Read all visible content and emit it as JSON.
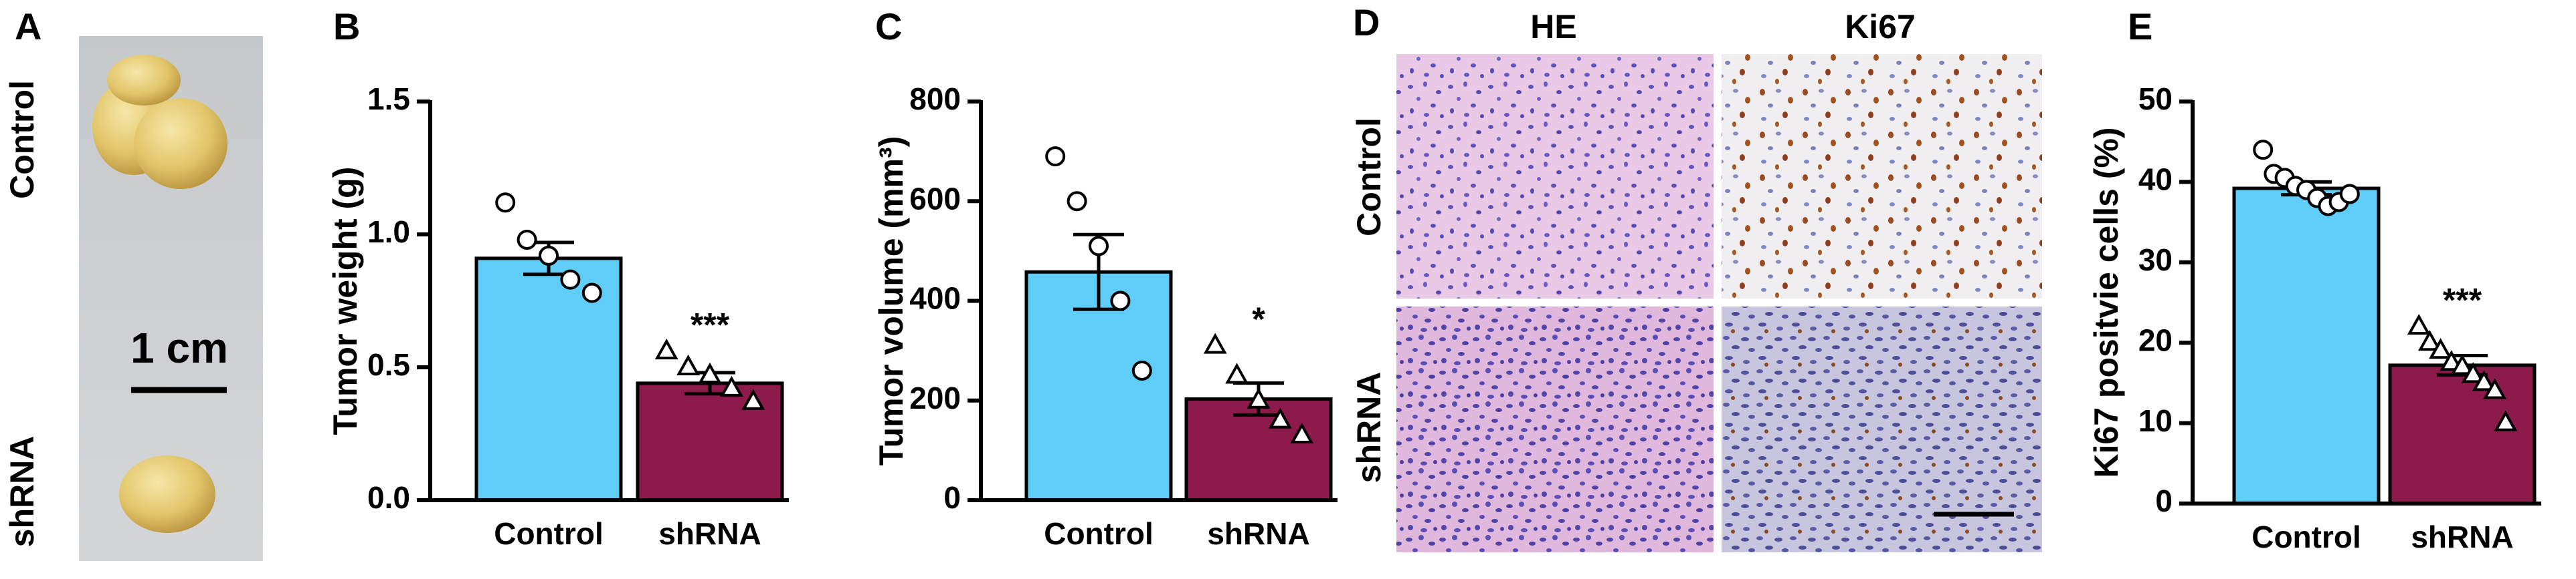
{
  "panels": {
    "a": {
      "letter": "A",
      "rows": [
        "Control",
        "shRNA"
      ],
      "scale": "1 cm"
    },
    "b": {
      "letter": "B"
    },
    "c": {
      "letter": "C"
    },
    "d": {
      "letter": "D",
      "columns": [
        "HE",
        "Ki67"
      ],
      "rows": [
        "Control",
        "shRNA"
      ]
    },
    "e": {
      "letter": "E"
    }
  },
  "chart_data": [
    {
      "type": "bar",
      "ylabel": "Tumor  weight (g)",
      "categories": [
        "Control",
        "shRNA"
      ],
      "values": [
        0.91,
        0.44
      ],
      "errors": [
        0.06,
        0.04
      ],
      "colors": [
        "#5fcdf7",
        "#8c1a4b"
      ],
      "points": [
        [
          1.12,
          0.98,
          0.92,
          0.83,
          0.78
        ],
        [
          0.56,
          0.5,
          0.47,
          0.42,
          0.37
        ]
      ],
      "annotations": [
        null,
        "***"
      ],
      "ylim": [
        0,
        1.5
      ],
      "yticks": [
        {
          "value": 0,
          "label": "0.0"
        },
        {
          "value": 0.5,
          "label": "0.5"
        },
        {
          "value": 1,
          "label": "1.0"
        },
        {
          "value": 1.5,
          "label": "1.5"
        }
      ]
    },
    {
      "type": "bar",
      "ylabel": "Tumor  volume (mm³)",
      "categories": [
        "Control",
        "shRNA"
      ],
      "values": [
        458,
        203
      ],
      "errors": [
        75,
        32
      ],
      "colors": [
        "#5fcdf7",
        "#8c1a4b"
      ],
      "points": [
        [
          690,
          600,
          510,
          400,
          260
        ],
        [
          310,
          250,
          200,
          160,
          130
        ]
      ],
      "annotations": [
        null,
        "*"
      ],
      "ylim": [
        0,
        800
      ],
      "yticks": [
        0,
        200,
        400,
        600,
        800
      ]
    },
    {
      "type": "bar",
      "ylabel": "Ki67 positvie cells (%)",
      "categories": [
        "Control",
        "shRNA"
      ],
      "values": [
        39.2,
        17.2
      ],
      "errors": [
        0.8,
        1.2
      ],
      "colors": [
        "#5fcdf7",
        "#8c1a4b"
      ],
      "points": [
        [
          44,
          41,
          40.5,
          39.5,
          39,
          38,
          37,
          37.5,
          38.5
        ],
        [
          22,
          20,
          19,
          17.5,
          17,
          16,
          15,
          14,
          10
        ]
      ],
      "annotations": [
        null,
        "***"
      ],
      "ylim": [
        0,
        50
      ],
      "yticks": [
        0,
        10,
        20,
        30,
        40,
        50
      ]
    }
  ]
}
